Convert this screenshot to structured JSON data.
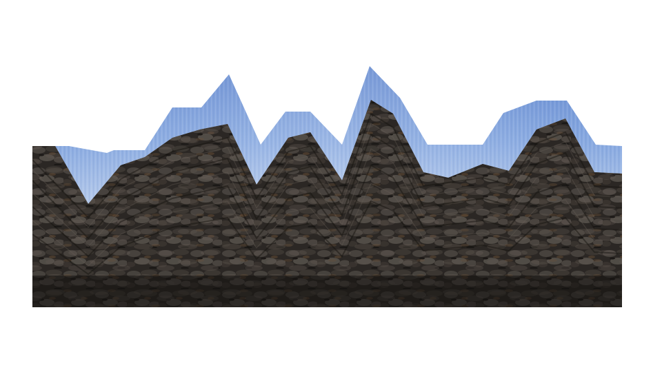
{
  "scene": {
    "subject": "jagged-stone-wall-with-sky-texture",
    "colors": {
      "background": "#ffffff",
      "sky_top": "#6f95d8",
      "sky_bottom": "#a9c2e8",
      "stone_dark": "#1d1a18",
      "stone_mid": "#3b3733",
      "stone_light": "#5e5750",
      "stone_warm": "#5a4430"
    }
  }
}
